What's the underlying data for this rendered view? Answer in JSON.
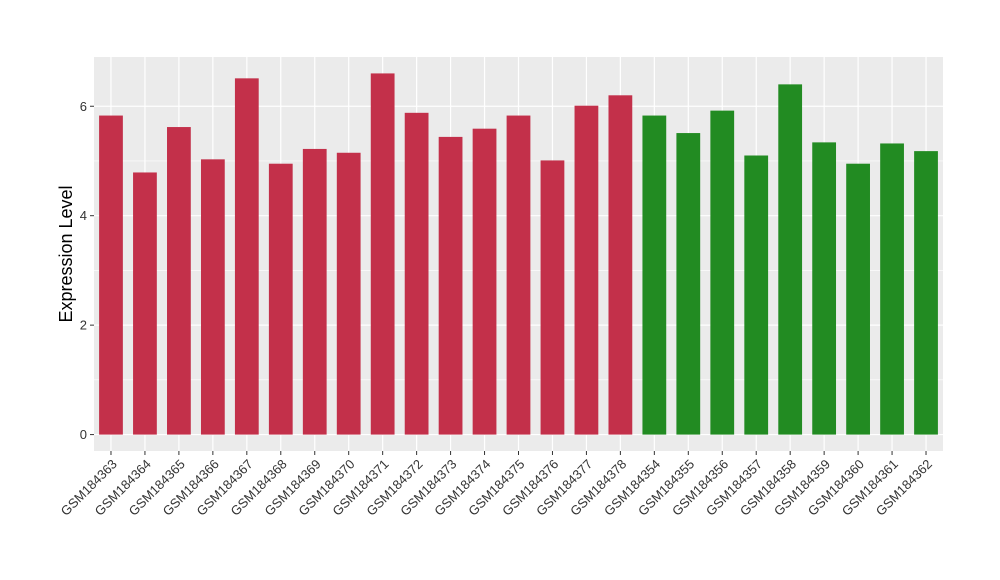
{
  "chart_data": {
    "type": "bar",
    "title": "",
    "xlabel": "",
    "ylabel": "Expression Level",
    "ylim": [
      -0.3,
      6.9
    ],
    "yticks": [
      0,
      2,
      4,
      6
    ],
    "grid": true,
    "legend": "none",
    "colors": {
      "group_a": "#c3304a",
      "group_b": "#228b22",
      "panel": "#ebebeb",
      "gridline": "#ffffff"
    },
    "categories": [
      "GSM184363",
      "GSM184364",
      "GSM184365",
      "GSM184366",
      "GSM184367",
      "GSM184368",
      "GSM184369",
      "GSM184370",
      "GSM184371",
      "GSM184372",
      "GSM184373",
      "GSM184374",
      "GSM184375",
      "GSM184376",
      "GSM184377",
      "GSM184378",
      "GSM184354",
      "GSM184355",
      "GSM184356",
      "GSM184357",
      "GSM184358",
      "GSM184359",
      "GSM184360",
      "GSM184361",
      "GSM184362"
    ],
    "values": [
      5.83,
      4.79,
      5.62,
      5.03,
      6.51,
      4.95,
      5.22,
      5.15,
      6.6,
      5.88,
      5.44,
      5.59,
      5.83,
      5.01,
      6.01,
      6.2,
      5.83,
      5.51,
      5.92,
      5.1,
      6.4,
      5.34,
      4.95,
      5.32,
      5.18
    ],
    "groups": [
      "a",
      "a",
      "a",
      "a",
      "a",
      "a",
      "a",
      "a",
      "a",
      "a",
      "a",
      "a",
      "a",
      "a",
      "a",
      "a",
      "b",
      "b",
      "b",
      "b",
      "b",
      "b",
      "b",
      "b",
      "b"
    ]
  }
}
